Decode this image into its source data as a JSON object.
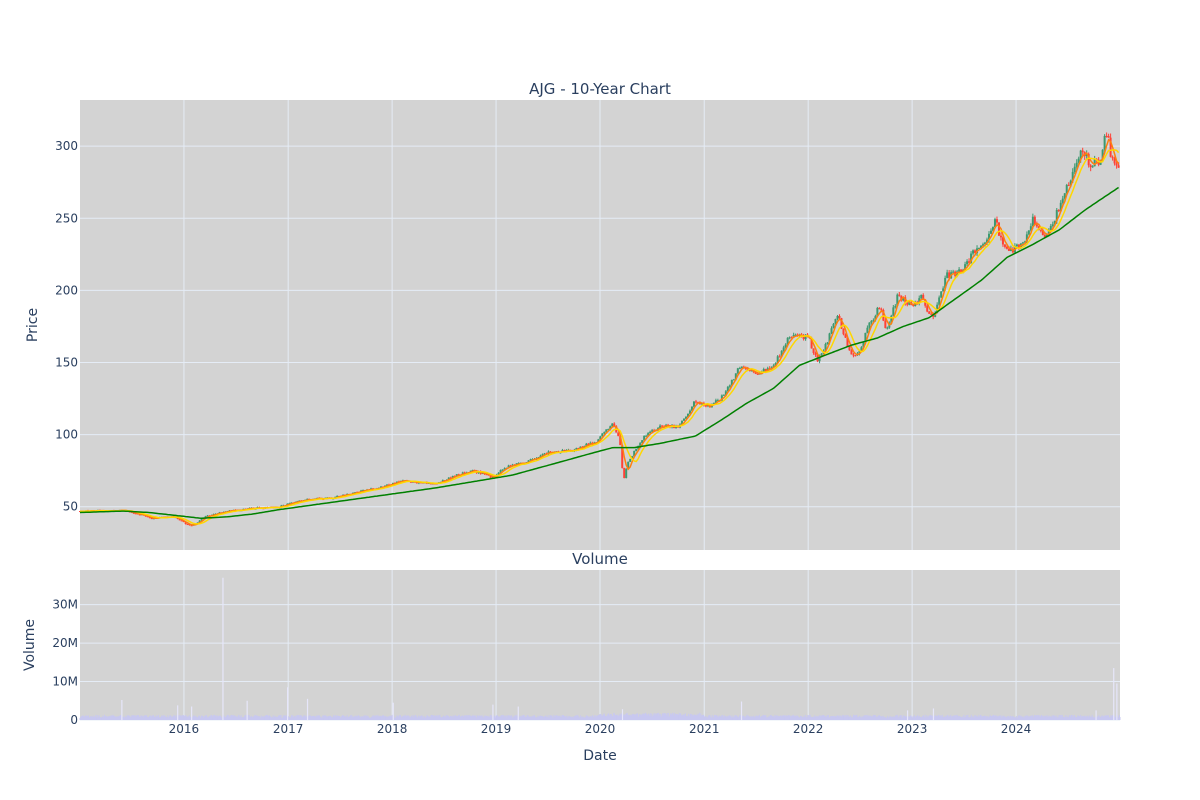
{
  "chart_data": [
    {
      "type": "candlestick",
      "title": "AJG - 10-Year Chart",
      "xlabel": "",
      "ylabel": "Price",
      "xlim": [
        "2015-01-01",
        "2024-12-31"
      ],
      "ylim": [
        20,
        332
      ],
      "yticks": [
        50,
        100,
        150,
        200,
        250,
        300
      ],
      "xticks": [
        "2016",
        "2017",
        "2018",
        "2019",
        "2020",
        "2021",
        "2022",
        "2023",
        "2024"
      ],
      "grid": true,
      "colors": {
        "up": "#3d9970",
        "down": "#ff4136",
        "ma_short": "#ff7f0e",
        "ma_mid": "#ffd700",
        "ma_long": "#008000",
        "background": "#d3d3d3",
        "grid": "#e5ecf6"
      },
      "price_anchors": [
        [
          "2015-01-02",
          47
        ],
        [
          "2015-06-01",
          47.5
        ],
        [
          "2015-08-15",
          44
        ],
        [
          "2015-09-01",
          42
        ],
        [
          "2015-12-01",
          43
        ],
        [
          "2016-01-10",
          38
        ],
        [
          "2016-02-01",
          37
        ],
        [
          "2016-03-15",
          43
        ],
        [
          "2016-06-01",
          47
        ],
        [
          "2016-09-01",
          49
        ],
        [
          "2016-12-01",
          50
        ],
        [
          "2017-03-01",
          55
        ],
        [
          "2017-06-01",
          56
        ],
        [
          "2017-09-01",
          60
        ],
        [
          "2017-12-01",
          64
        ],
        [
          "2018-02-01",
          68
        ],
        [
          "2018-03-15",
          67
        ],
        [
          "2018-06-01",
          66
        ],
        [
          "2018-09-01",
          73
        ],
        [
          "2018-10-15",
          75
        ],
        [
          "2018-12-20",
          70
        ],
        [
          "2019-02-01",
          77
        ],
        [
          "2019-05-01",
          82
        ],
        [
          "2019-07-01",
          88
        ],
        [
          "2019-10-01",
          89
        ],
        [
          "2019-12-15",
          95
        ],
        [
          "2020-02-15",
          108
        ],
        [
          "2020-03-10",
          97
        ],
        [
          "2020-03-23",
          68
        ],
        [
          "2020-04-10",
          82
        ],
        [
          "2020-06-01",
          98
        ],
        [
          "2020-08-01",
          106
        ],
        [
          "2020-10-01",
          105
        ],
        [
          "2020-11-10",
          117
        ],
        [
          "2020-12-01",
          124
        ],
        [
          "2021-01-15",
          119
        ],
        [
          "2021-03-01",
          125
        ],
        [
          "2021-05-10",
          148
        ],
        [
          "2021-07-01",
          142
        ],
        [
          "2021-09-01",
          147
        ],
        [
          "2021-10-25",
          167
        ],
        [
          "2021-12-31",
          168
        ],
        [
          "2022-02-01",
          152
        ],
        [
          "2022-03-01",
          160
        ],
        [
          "2022-04-15",
          183
        ],
        [
          "2022-05-25",
          158
        ],
        [
          "2022-06-20",
          153
        ],
        [
          "2022-08-01",
          175
        ],
        [
          "2022-09-10",
          189
        ],
        [
          "2022-10-01",
          172
        ],
        [
          "2022-11-10",
          195
        ],
        [
          "2022-12-31",
          190
        ],
        [
          "2023-02-01",
          195
        ],
        [
          "2023-03-15",
          180
        ],
        [
          "2023-05-01",
          210
        ],
        [
          "2023-06-15",
          212
        ],
        [
          "2023-08-01",
          225
        ],
        [
          "2023-09-15",
          235
        ],
        [
          "2023-10-20",
          248
        ],
        [
          "2023-11-10",
          235
        ],
        [
          "2023-12-15",
          228
        ],
        [
          "2024-01-31",
          232
        ],
        [
          "2024-03-01",
          250
        ],
        [
          "2024-04-20",
          237
        ],
        [
          "2024-06-01",
          258
        ],
        [
          "2024-07-15",
          280
        ],
        [
          "2024-08-20",
          298
        ],
        [
          "2024-09-20",
          287
        ],
        [
          "2024-10-20",
          290
        ],
        [
          "2024-11-15",
          310
        ],
        [
          "2024-12-01",
          292
        ],
        [
          "2024-12-31",
          285
        ]
      ],
      "ma_long_anchors": [
        [
          "2015-01-02",
          46
        ],
        [
          "2015-06-01",
          47
        ],
        [
          "2015-09-01",
          46
        ],
        [
          "2015-12-01",
          44
        ],
        [
          "2016-03-01",
          42
        ],
        [
          "2016-06-01",
          43
        ],
        [
          "2016-09-01",
          45
        ],
        [
          "2016-12-01",
          48
        ],
        [
          "2017-06-01",
          53
        ],
        [
          "2017-12-01",
          58
        ],
        [
          "2018-06-01",
          63
        ],
        [
          "2018-12-01",
          69
        ],
        [
          "2019-03-01",
          72
        ],
        [
          "2019-06-01",
          77
        ],
        [
          "2019-09-01",
          82
        ],
        [
          "2019-12-01",
          87
        ],
        [
          "2020-02-15",
          91
        ],
        [
          "2020-05-01",
          91
        ],
        [
          "2020-08-01",
          94
        ],
        [
          "2020-12-01",
          99
        ],
        [
          "2021-03-01",
          110
        ],
        [
          "2021-06-01",
          122
        ],
        [
          "2021-09-01",
          132
        ],
        [
          "2021-12-01",
          148
        ],
        [
          "2022-03-01",
          155
        ],
        [
          "2022-06-01",
          162
        ],
        [
          "2022-09-01",
          167
        ],
        [
          "2022-12-01",
          175
        ],
        [
          "2023-03-01",
          181
        ],
        [
          "2023-06-01",
          194
        ],
        [
          "2023-09-01",
          207
        ],
        [
          "2023-12-01",
          223
        ],
        [
          "2024-03-01",
          232
        ],
        [
          "2024-06-01",
          242
        ],
        [
          "2024-09-01",
          256
        ],
        [
          "2024-12-31",
          272
        ]
      ]
    },
    {
      "type": "bar",
      "title": "Volume",
      "xlabel": "Date",
      "ylabel": "Volume",
      "xlim": [
        "2015-01-01",
        "2024-12-31"
      ],
      "ylim": [
        0,
        39000000
      ],
      "yticks": [
        0,
        10000000,
        20000000,
        30000000
      ],
      "ytick_labels": [
        "0",
        "10M",
        "20M",
        "30M"
      ],
      "xticks": [
        "2016",
        "2017",
        "2018",
        "2019",
        "2020",
        "2021",
        "2022",
        "2023",
        "2024"
      ],
      "grid": true,
      "colors": {
        "bar": "#c8c8f0",
        "background": "#d3d3d3"
      },
      "typical_volume": 1000000,
      "spikes": [
        [
          "2015-05-28",
          5200000
        ],
        [
          "2015-12-10",
          3800000
        ],
        [
          "2016-01-28",
          3500000
        ],
        [
          "2016-05-17",
          37000000
        ],
        [
          "2016-08-10",
          5000000
        ],
        [
          "2016-12-30",
          8500000
        ],
        [
          "2017-03-10",
          5500000
        ],
        [
          "2018-01-05",
          4500000
        ],
        [
          "2018-12-21",
          4000000
        ],
        [
          "2019-03-20",
          3500000
        ],
        [
          "2020-03-20",
          2800000
        ],
        [
          "2021-05-12",
          4800000
        ],
        [
          "2022-12-16",
          2500000
        ],
        [
          "2023-03-17",
          3000000
        ],
        [
          "2024-10-08",
          2500000
        ],
        [
          "2024-12-09",
          13500000
        ],
        [
          "2024-12-20",
          9500000
        ]
      ]
    }
  ]
}
